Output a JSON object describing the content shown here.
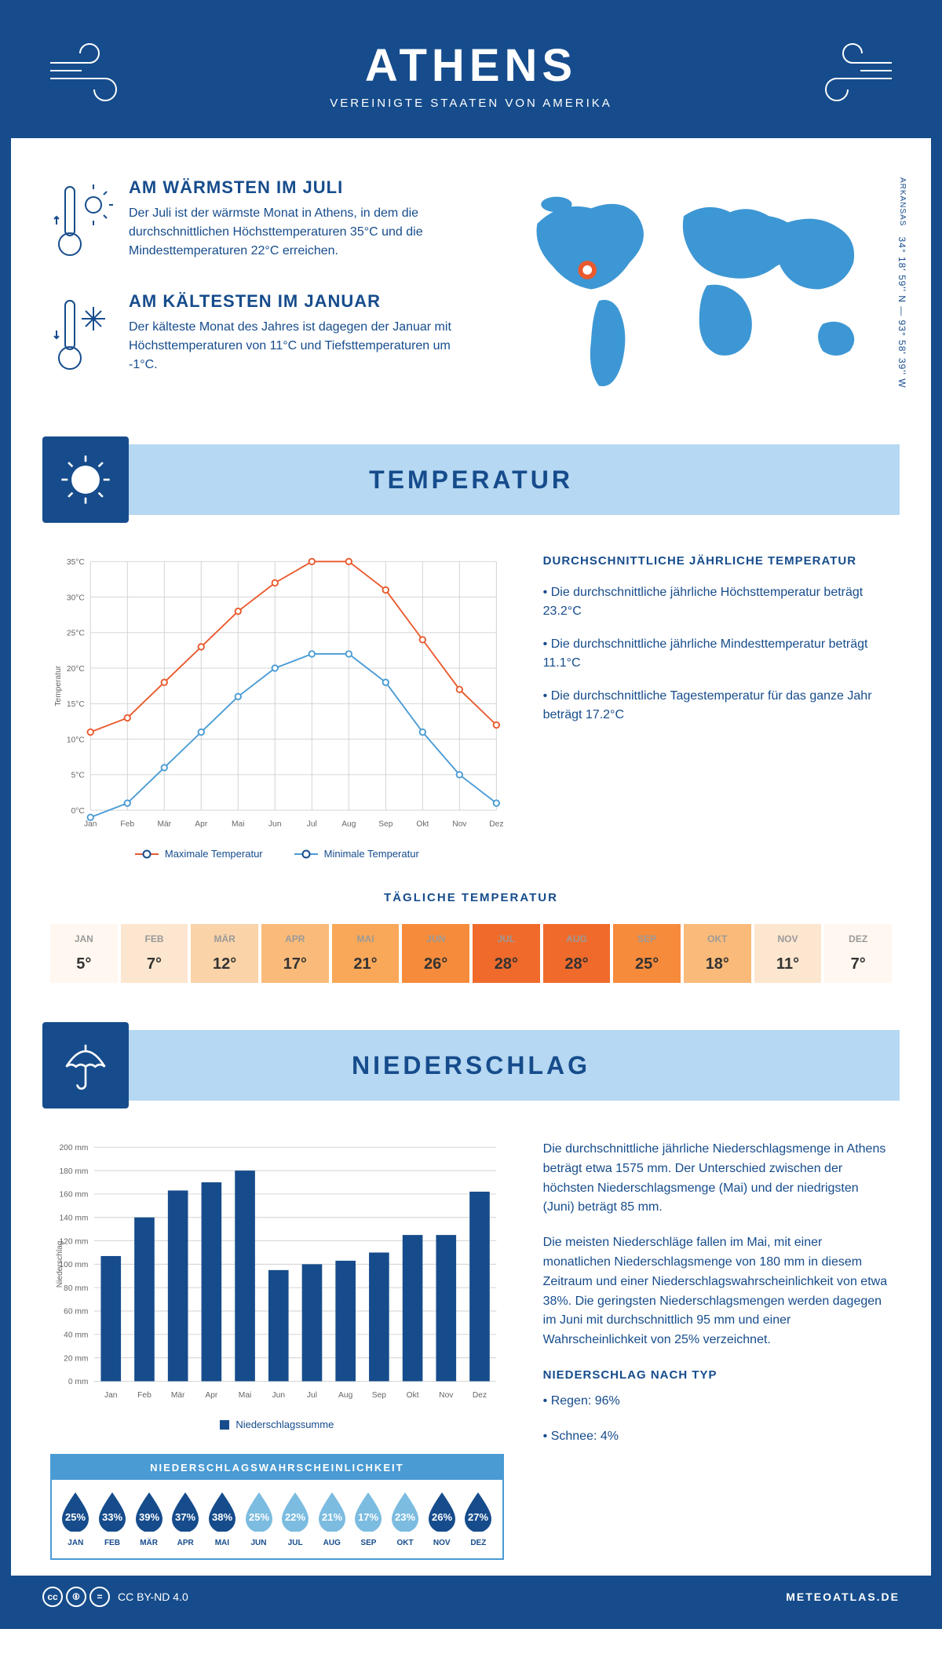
{
  "header": {
    "title": "ATHENS",
    "subtitle": "VEREINIGTE STAATEN VON AMERIKA"
  },
  "coords": {
    "lat": "34° 18' 59'' N",
    "lon": "93° 58' 39'' W",
    "region": "ARKANSAS"
  },
  "warmest": {
    "title": "AM WÄRMSTEN IM JULI",
    "text": "Der Juli ist der wärmste Monat in Athens, in dem die durchschnittlichen Höchsttemperaturen 35°C und die Mindesttemperaturen 22°C erreichen."
  },
  "coldest": {
    "title": "AM KÄLTESTEN IM JANUAR",
    "text": "Der kälteste Monat des Jahres ist dagegen der Januar mit Höchsttemperaturen von 11°C und Tiefsttemperaturen um -1°C."
  },
  "temp_section": {
    "title": "TEMPERATUR"
  },
  "temp_chart": {
    "type": "line",
    "months": [
      "Jan",
      "Feb",
      "Mär",
      "Apr",
      "Mai",
      "Jun",
      "Jul",
      "Aug",
      "Sep",
      "Okt",
      "Nov",
      "Dez"
    ],
    "max": [
      11,
      13,
      18,
      23,
      28,
      32,
      35,
      35,
      31,
      24,
      17,
      12
    ],
    "min": [
      -1,
      1,
      6,
      11,
      16,
      20,
      22,
      22,
      18,
      11,
      5,
      1
    ],
    "ylabel": "Temperatur",
    "ylim": [
      0,
      35
    ],
    "ytick_step": 5,
    "max_color": "#e9592d",
    "min_color": "#4a9bd4",
    "grid_color": "#d0d0d0",
    "background_color": "#ffffff",
    "label_fontsize": 11,
    "line_width": 2,
    "marker_size": 4,
    "legend": {
      "max": "Maximale Temperatur",
      "min": "Minimale Temperatur"
    }
  },
  "temp_info": {
    "heading": "DURCHSCHNITTLICHE JÄHRLICHE TEMPERATUR",
    "bullets": [
      "• Die durchschnittliche jährliche Höchsttemperatur beträgt 23.2°C",
      "• Die durchschnittliche jährliche Mindesttemperatur beträgt 11.1°C",
      "• Die durchschnittliche Tagestemperatur für das ganze Jahr beträgt 17.2°C"
    ]
  },
  "daily": {
    "title": "TÄGLICHE TEMPERATUR",
    "months": [
      "JAN",
      "FEB",
      "MÄR",
      "APR",
      "MAI",
      "JUN",
      "JUL",
      "AUG",
      "SEP",
      "OKT",
      "NOV",
      "DEZ"
    ],
    "values": [
      "5°",
      "7°",
      "12°",
      "17°",
      "21°",
      "26°",
      "28°",
      "28°",
      "25°",
      "18°",
      "11°",
      "7°"
    ],
    "colors": [
      "#fff7f0",
      "#fde6cf",
      "#fbd3a8",
      "#fabb7a",
      "#f9a859",
      "#f68b3c",
      "#ef6a2b",
      "#ef6a2b",
      "#f68b3c",
      "#fabb7a",
      "#fde6cf",
      "#fff7f0"
    ]
  },
  "precip_section": {
    "title": "NIEDERSCHLAG"
  },
  "precip_chart": {
    "type": "bar",
    "months": [
      "Jan",
      "Feb",
      "Mär",
      "Apr",
      "Mai",
      "Jun",
      "Jul",
      "Aug",
      "Sep",
      "Okt",
      "Nov",
      "Dez"
    ],
    "values": [
      107,
      140,
      163,
      170,
      180,
      95,
      100,
      103,
      110,
      125,
      125,
      162
    ],
    "ylabel": "Niederschlag",
    "ylim": [
      0,
      200
    ],
    "ytick_step": 20,
    "bar_color": "#164c8c",
    "grid_color": "#d0d0d0",
    "background_color": "#ffffff",
    "bar_width": 0.6,
    "label_fontsize": 11,
    "legend": "Niederschlagssumme"
  },
  "precip_info": {
    "p1": "Die durchschnittliche jährliche Niederschlagsmenge in Athens beträgt etwa 1575 mm. Der Unterschied zwischen der höchsten Niederschlagsmenge (Mai) und der niedrigsten (Juni) beträgt 85 mm.",
    "p2": "Die meisten Niederschläge fallen im Mai, mit einer monatlichen Niederschlagsmenge von 180 mm in diesem Zeitraum und einer Niederschlagswahrscheinlichkeit von etwa 38%. Die geringsten Niederschlagsmengen werden dagegen im Juni mit durchschnittlich 95 mm und einer Wahrscheinlichkeit von 25% verzeichnet.",
    "type_heading": "NIEDERSCHLAG NACH TYP",
    "types": [
      "• Regen: 96%",
      "• Schnee: 4%"
    ]
  },
  "prob": {
    "title": "NIEDERSCHLAGSWAHRSCHEINLICHKEIT",
    "months": [
      "JAN",
      "FEB",
      "MÄR",
      "APR",
      "MAI",
      "JUN",
      "JUL",
      "AUG",
      "SEP",
      "OKT",
      "NOV",
      "DEZ"
    ],
    "values": [
      "25%",
      "33%",
      "39%",
      "37%",
      "38%",
      "25%",
      "22%",
      "21%",
      "17%",
      "23%",
      "26%",
      "27%"
    ],
    "colors": [
      "#164c8c",
      "#164c8c",
      "#164c8c",
      "#164c8c",
      "#164c8c",
      "#7cbce0",
      "#7cbce0",
      "#7cbce0",
      "#7cbce0",
      "#7cbce0",
      "#164c8c",
      "#164c8c"
    ]
  },
  "footer": {
    "license": "CC BY-ND 4.0",
    "brand": "METEOATLAS.DE"
  },
  "palette": {
    "primary": "#164c8c",
    "light_blue": "#b6d8f2",
    "mid_blue": "#4a9bd4",
    "orange": "#e9592d"
  }
}
